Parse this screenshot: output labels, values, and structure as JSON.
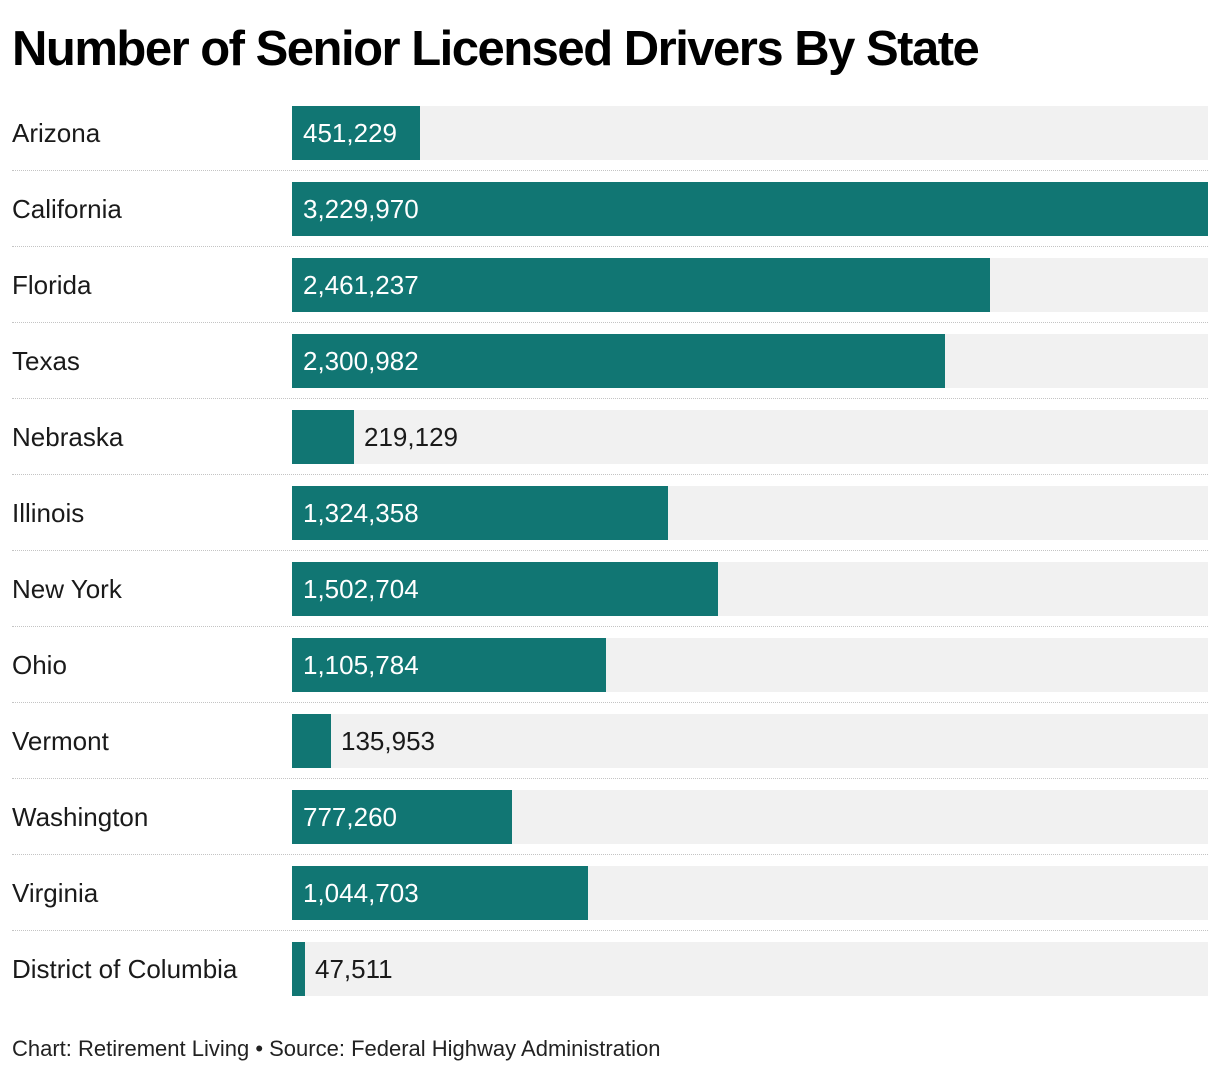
{
  "chart_data": {
    "type": "bar",
    "orientation": "horizontal",
    "title": "Number of Senior Licensed Drivers By State",
    "categories": [
      "Arizona",
      "California",
      "Florida",
      "Texas",
      "Nebraska",
      "Illinois",
      "New York",
      "Ohio",
      "Vermont",
      "Washington",
      "Virginia",
      "District of Columbia"
    ],
    "values": [
      451229,
      3229970,
      2461237,
      2300982,
      219129,
      1324358,
      1502704,
      1105784,
      135953,
      777260,
      1044703,
      47511
    ],
    "value_labels": [
      "451,229",
      "3,229,970",
      "2,461,237",
      "2,300,982",
      "219,129",
      "1,324,358",
      "1,502,704",
      "1,105,784",
      "135,953",
      "777,260",
      "1,044,703",
      "47,511"
    ],
    "xlim": [
      0,
      3229970
    ],
    "xlabel": "",
    "ylabel": "",
    "grid": false,
    "colors": {
      "bar": "#117673",
      "track": "#f1f1f1",
      "value_inside": "#ffffff",
      "value_outside": "#1a1a1a"
    }
  },
  "footer": {
    "text": "Chart: Retirement Living • Source: Federal Highway Administration"
  }
}
